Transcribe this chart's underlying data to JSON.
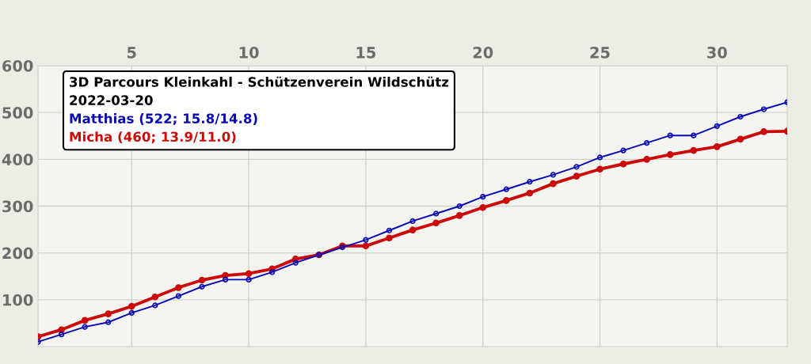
{
  "chart_data": {
    "type": "line",
    "title": "3D Parcours Kleinkahl - Schützenverein Wildschütz",
    "subtitle": "2022-03-20",
    "x": [
      1,
      2,
      3,
      4,
      5,
      6,
      7,
      8,
      9,
      10,
      11,
      12,
      13,
      14,
      15,
      16,
      17,
      18,
      19,
      20,
      21,
      22,
      23,
      24,
      25,
      26,
      27,
      28,
      29,
      30,
      31,
      32,
      33
    ],
    "series": [
      {
        "name": "Matthias (522; 15.8/14.8)",
        "color": "#0a0ab4",
        "values": [
          10,
          26,
          42,
          52,
          72,
          88,
          108,
          128,
          143,
          143,
          159,
          179,
          196,
          212,
          228,
          248,
          268,
          284,
          300,
          320,
          336,
          352,
          367,
          384,
          404,
          419,
          435,
          451,
          451,
          471,
          491,
          507,
          522
        ]
      },
      {
        "name": "Micha (460; 13.9/11.0)",
        "color": "#cc0a0a",
        "values": [
          21,
          36,
          56,
          70,
          86,
          106,
          126,
          142,
          152,
          156,
          166,
          187,
          196,
          215,
          215,
          232,
          249,
          264,
          280,
          297,
          312,
          328,
          348,
          364,
          379,
          390,
          400,
          410,
          419,
          427,
          443,
          459,
          460
        ]
      }
    ],
    "xlim": [
      1,
      33
    ],
    "xticks": [
      5,
      10,
      15,
      20,
      25,
      30
    ],
    "ylim": [
      0,
      600
    ],
    "yticks": [
      100,
      200,
      300,
      400,
      500,
      600
    ],
    "grid": true,
    "legend": "top left",
    "marker": "circle",
    "line_style": "solid"
  }
}
